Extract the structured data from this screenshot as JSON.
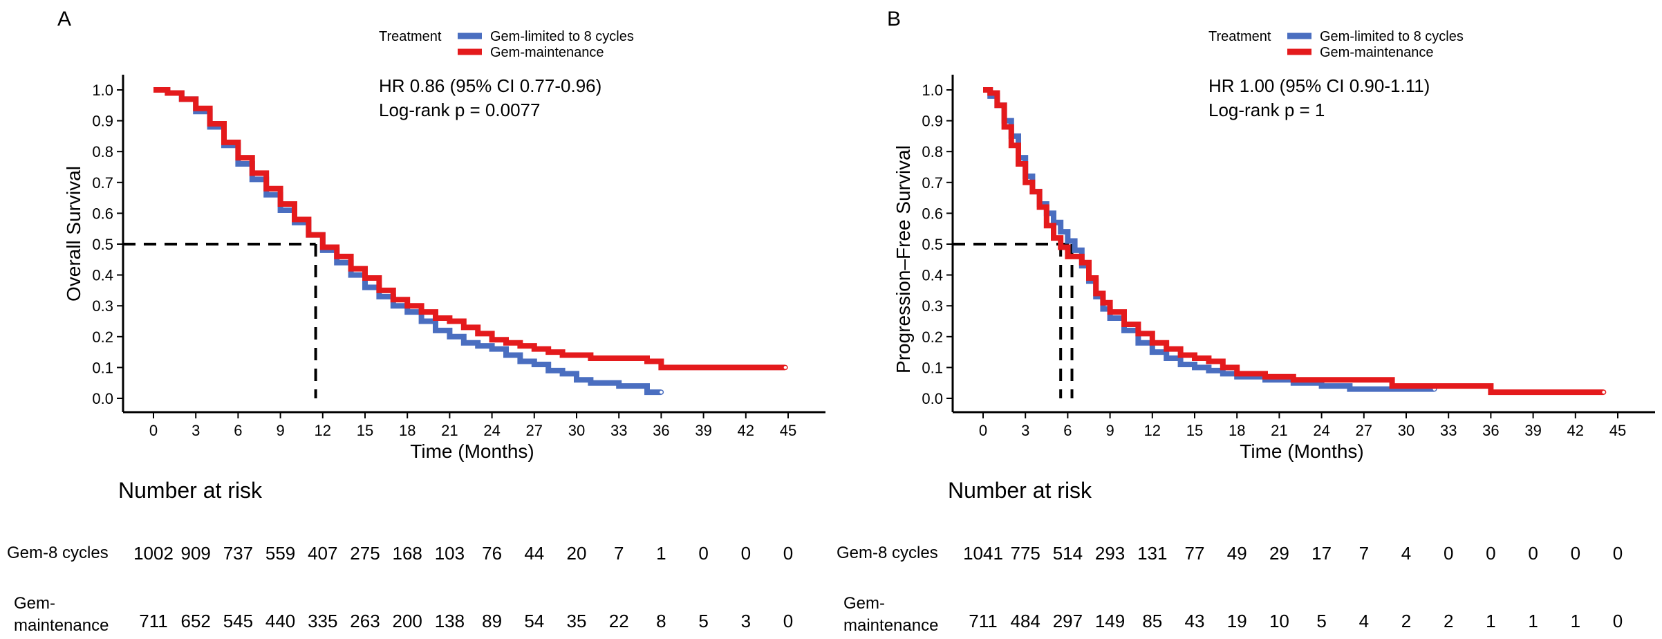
{
  "colors": {
    "gem8": "#4a6ec0",
    "gemMaint": "#e41a1c",
    "axis": "#000000"
  },
  "legend": {
    "title": "Treatment",
    "gem8_label": "Gem-limited to 8 cycles",
    "maint_label": "Gem-maintenance"
  },
  "risk": {
    "title": "Number at risk",
    "gem8_label": "Gem-8 cycles",
    "maint_label_line1": "Gem-",
    "maint_label_line2": "maintenance"
  },
  "panels": {
    "A": {
      "letter": "A",
      "hr_text": "HR 0.86 (95% CI 0.77-0.96)",
      "p_text": "Log-rank p = 0.0077",
      "ylabel": "Overall Survival",
      "xlabel": "Time (Months)",
      "risk_gem8": [
        1002,
        909,
        737,
        559,
        407,
        275,
        168,
        103,
        76,
        44,
        20,
        7,
        1,
        0,
        0,
        0
      ],
      "risk_maint": [
        711,
        652,
        545,
        440,
        335,
        263,
        200,
        138,
        89,
        54,
        35,
        22,
        8,
        5,
        3,
        0
      ]
    },
    "B": {
      "letter": "B",
      "hr_text": "HR 1.00 (95% CI 0.90-1.11)",
      "p_text": "Log-rank p = 1",
      "ylabel": "Progression–Free Survival",
      "xlabel": "Time (Months)",
      "risk_gem8": [
        1041,
        775,
        514,
        293,
        131,
        77,
        49,
        29,
        17,
        7,
        4,
        0,
        0,
        0,
        0,
        0
      ],
      "risk_maint": [
        711,
        484,
        297,
        149,
        85,
        43,
        19,
        10,
        5,
        4,
        2,
        2,
        1,
        1,
        1,
        0
      ]
    }
  },
  "chart_data": [
    {
      "type": "line",
      "panel": "A",
      "title": "",
      "xlabel": "Time (Months)",
      "ylabel": "Overall Survival",
      "xlim": [
        0,
        45
      ],
      "ylim": [
        0,
        1
      ],
      "x_ticks": [
        0,
        3,
        6,
        9,
        12,
        15,
        18,
        21,
        24,
        27,
        30,
        33,
        36,
        39,
        42,
        45
      ],
      "y_ticks": [
        0.0,
        0.1,
        0.2,
        0.3,
        0.4,
        0.5,
        0.6,
        0.7,
        0.8,
        0.9,
        1.0
      ],
      "y_tick_labels": [
        "0.0",
        "0.1",
        "0.2",
        "0.3",
        "0.4",
        "0.5",
        "0.6",
        "0.7",
        "0.8",
        "0.9",
        "1.0"
      ],
      "annotations": [
        "HR 0.86 (95% CI 0.77-0.96)",
        "Log-rank p = 0.0077"
      ],
      "median_lines": [
        11.5
      ],
      "series": [
        {
          "name": "Gem-limited to 8 cycles",
          "color": "#4a6ec0",
          "x": [
            0,
            1,
            2,
            3,
            4,
            5,
            6,
            7,
            8,
            9,
            10,
            11,
            12,
            13,
            14,
            15,
            16,
            17,
            18,
            19,
            20,
            21,
            22,
            23,
            24,
            25,
            26,
            27,
            28,
            29,
            30,
            31,
            32,
            33,
            34,
            35,
            35.5,
            36
          ],
          "y": [
            1.0,
            0.99,
            0.97,
            0.93,
            0.88,
            0.82,
            0.76,
            0.71,
            0.66,
            0.61,
            0.57,
            0.53,
            0.48,
            0.44,
            0.4,
            0.36,
            0.33,
            0.3,
            0.28,
            0.25,
            0.22,
            0.2,
            0.18,
            0.17,
            0.16,
            0.14,
            0.12,
            0.11,
            0.09,
            0.08,
            0.06,
            0.05,
            0.05,
            0.04,
            0.04,
            0.02,
            0.02,
            0.02
          ]
        },
        {
          "name": "Gem-maintenance",
          "color": "#e41a1c",
          "x": [
            0,
            1,
            2,
            3,
            4,
            5,
            6,
            7,
            8,
            9,
            10,
            11,
            12,
            13,
            14,
            15,
            16,
            17,
            18,
            19,
            20,
            21,
            22,
            23,
            24,
            25,
            26,
            27,
            28,
            29,
            30,
            31,
            32,
            33,
            34,
            35,
            36,
            38,
            40,
            42,
            44.8
          ],
          "y": [
            1.0,
            0.99,
            0.97,
            0.94,
            0.89,
            0.83,
            0.78,
            0.73,
            0.68,
            0.63,
            0.58,
            0.53,
            0.49,
            0.46,
            0.42,
            0.39,
            0.35,
            0.32,
            0.3,
            0.28,
            0.26,
            0.25,
            0.23,
            0.21,
            0.19,
            0.18,
            0.17,
            0.16,
            0.15,
            0.14,
            0.14,
            0.13,
            0.13,
            0.13,
            0.13,
            0.12,
            0.1,
            0.1,
            0.1,
            0.1,
            0.1
          ]
        }
      ]
    },
    {
      "type": "line",
      "panel": "B",
      "title": "",
      "xlabel": "Time (Months)",
      "ylabel": "Progression–Free Survival",
      "xlim": [
        0,
        45
      ],
      "ylim": [
        0,
        1
      ],
      "x_ticks": [
        0,
        3,
        6,
        9,
        12,
        15,
        18,
        21,
        24,
        27,
        30,
        33,
        36,
        39,
        42,
        45
      ],
      "y_ticks": [
        0.0,
        0.1,
        0.2,
        0.3,
        0.4,
        0.5,
        0.6,
        0.7,
        0.8,
        0.9,
        1.0
      ],
      "y_tick_labels": [
        "0.0",
        "0.1",
        "0.2",
        "0.3",
        "0.4",
        "0.5",
        "0.6",
        "0.7",
        "0.8",
        "0.9",
        "1.0"
      ],
      "annotations": [
        "HR 1.00 (95% CI 0.90-1.11)",
        "Log-rank p = 1"
      ],
      "median_lines": [
        5.5,
        6.3
      ],
      "series": [
        {
          "name": "Gem-limited to 8 cycles",
          "color": "#4a6ec0",
          "x": [
            0,
            0.5,
            1,
            1.5,
            2,
            2.5,
            3,
            3.5,
            4,
            4.5,
            5,
            5.5,
            6,
            6.5,
            7,
            7.5,
            8,
            8.5,
            9,
            10,
            11,
            12,
            13,
            14,
            15,
            16,
            17,
            18,
            20,
            22,
            24,
            26,
            28,
            30,
            32
          ],
          "y": [
            1.0,
            0.98,
            0.95,
            0.9,
            0.85,
            0.78,
            0.72,
            0.67,
            0.63,
            0.6,
            0.57,
            0.54,
            0.51,
            0.48,
            0.43,
            0.38,
            0.33,
            0.29,
            0.26,
            0.22,
            0.18,
            0.15,
            0.13,
            0.11,
            0.1,
            0.09,
            0.08,
            0.07,
            0.06,
            0.05,
            0.04,
            0.03,
            0.03,
            0.03,
            0.03
          ]
        },
        {
          "name": "Gem-maintenance",
          "color": "#e41a1c",
          "x": [
            0,
            0.5,
            1,
            1.5,
            2,
            2.5,
            3,
            3.5,
            4,
            4.5,
            5,
            5.5,
            6,
            6.5,
            7,
            7.5,
            8,
            8.5,
            9,
            10,
            11,
            12,
            13,
            14,
            15,
            16,
            17,
            18,
            20,
            22,
            24,
            26,
            28,
            29,
            32,
            35,
            36,
            38,
            40,
            42,
            44
          ],
          "y": [
            1.0,
            0.99,
            0.95,
            0.88,
            0.82,
            0.76,
            0.7,
            0.67,
            0.62,
            0.56,
            0.52,
            0.49,
            0.46,
            0.46,
            0.44,
            0.39,
            0.34,
            0.31,
            0.28,
            0.24,
            0.21,
            0.18,
            0.16,
            0.14,
            0.13,
            0.12,
            0.1,
            0.08,
            0.07,
            0.06,
            0.06,
            0.06,
            0.06,
            0.04,
            0.04,
            0.04,
            0.02,
            0.02,
            0.02,
            0.02,
            0.02
          ]
        }
      ]
    }
  ]
}
